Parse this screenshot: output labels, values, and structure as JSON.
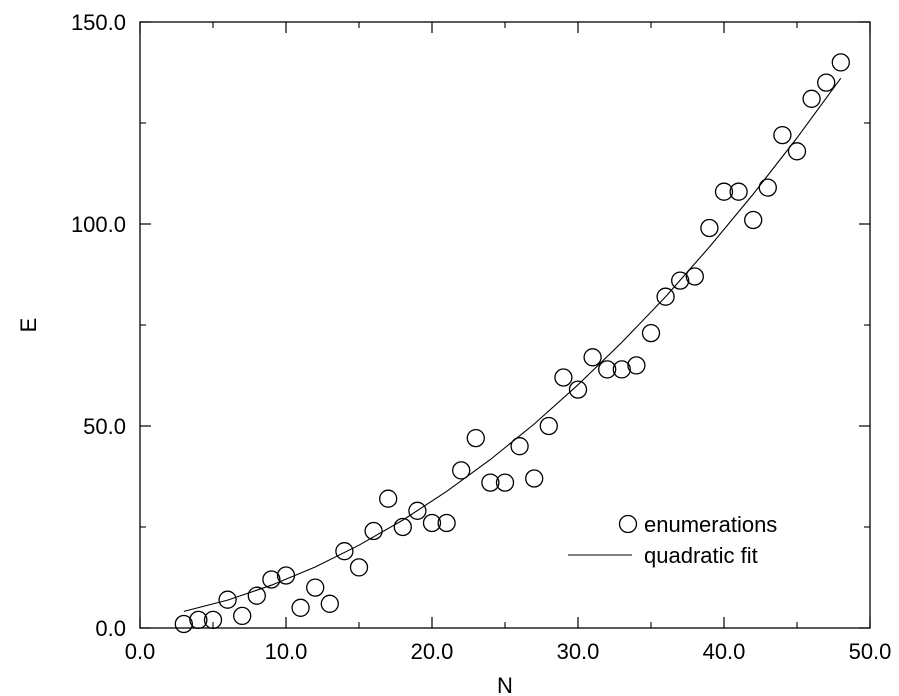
{
  "chart_data": {
    "type": "scatter",
    "xlabel": "N",
    "ylabel": "E",
    "xlim": [
      0,
      50
    ],
    "ylim": [
      0,
      150
    ],
    "x_ticks": [
      "0.0",
      "10.0",
      "20.0",
      "30.0",
      "40.0",
      "50.0"
    ],
    "y_ticks": [
      "0.0",
      "50.0",
      "100.0",
      "150.0"
    ],
    "grid": false,
    "legend_position": "bottom-right",
    "series": [
      {
        "name": "enumerations",
        "kind": "scatter",
        "marker": "open-circle",
        "points": [
          [
            3,
            1
          ],
          [
            4,
            2
          ],
          [
            5,
            2
          ],
          [
            6,
            7
          ],
          [
            7,
            3
          ],
          [
            8,
            8
          ],
          [
            9,
            12
          ],
          [
            10,
            13
          ],
          [
            11,
            5
          ],
          [
            12,
            10
          ],
          [
            13,
            6
          ],
          [
            14,
            19
          ],
          [
            15,
            15
          ],
          [
            16,
            24
          ],
          [
            17,
            32
          ],
          [
            18,
            25
          ],
          [
            19,
            29
          ],
          [
            20,
            26
          ],
          [
            21,
            26
          ],
          [
            22,
            39
          ],
          [
            23,
            47
          ],
          [
            24,
            36
          ],
          [
            25,
            36
          ],
          [
            26,
            45
          ],
          [
            27,
            37
          ],
          [
            28,
            50
          ],
          [
            29,
            62
          ],
          [
            30,
            59
          ],
          [
            31,
            67
          ],
          [
            32,
            64
          ],
          [
            33,
            64
          ],
          [
            34,
            65
          ],
          [
            35,
            73
          ],
          [
            36,
            82
          ],
          [
            37,
            86
          ],
          [
            38,
            87
          ],
          [
            39,
            99
          ],
          [
            40,
            108
          ],
          [
            41,
            108
          ],
          [
            42,
            101
          ],
          [
            43,
            109
          ],
          [
            44,
            122
          ],
          [
            45,
            118
          ],
          [
            46,
            131
          ],
          [
            47,
            135
          ],
          [
            48,
            140
          ]
        ]
      },
      {
        "name": "quadratic fit",
        "kind": "line",
        "x": [
          3,
          6,
          9,
          12,
          15,
          18,
          21,
          24,
          27,
          30,
          33,
          36,
          39,
          42,
          45,
          48
        ],
        "y": [
          4.1,
          6.9,
          10.6,
          15.1,
          20.5,
          26.7,
          33.8,
          41.7,
          50.5,
          60.2,
          70.7,
          82.0,
          94.3,
          107.4,
          121.3,
          136.1
        ]
      }
    ]
  }
}
